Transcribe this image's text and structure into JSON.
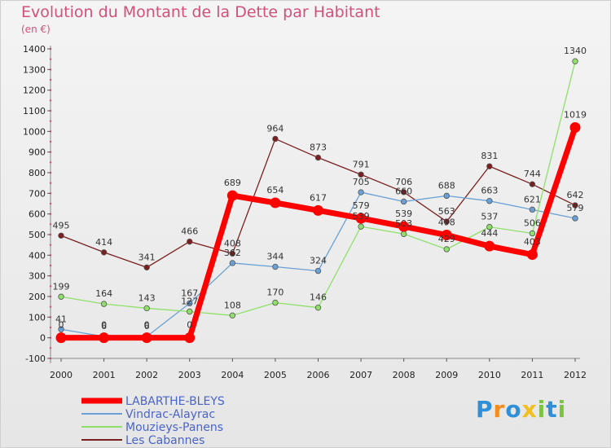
{
  "chart_data": {
    "type": "line",
    "title": "Evolution du Montant de la Dette par Habitant",
    "subtitle": "(en €)",
    "x": [
      "2000",
      "2001",
      "2002",
      "2003",
      "2004",
      "2005",
      "2006",
      "2007",
      "2008",
      "2009",
      "2010",
      "2011",
      "2012"
    ],
    "ylim": [
      -100,
      1400
    ],
    "yticks": [
      -100,
      0,
      100,
      200,
      300,
      400,
      500,
      600,
      700,
      800,
      900,
      1000,
      1100,
      1200,
      1300,
      1400
    ],
    "grid": false,
    "legend_position": "bottom-left",
    "series": [
      {
        "name": "LABARTHE-BLEYS",
        "color": "#ff0000",
        "width": 7,
        "marker_r": 6.5,
        "values": [
          0,
          0,
          0,
          0,
          689,
          654,
          617,
          579,
          539,
          498,
          444,
          403,
          1019
        ]
      },
      {
        "name": "Vindrac-Alayrac",
        "color": "#6aa0d6",
        "width": 1.3,
        "marker_r": 3.3,
        "values": [
          41,
          6,
          6,
          167,
          362,
          344,
          324,
          705,
          660,
          688,
          663,
          621,
          579
        ]
      },
      {
        "name": "Mouzieys-Panens",
        "color": "#8fe06a",
        "width": 1.3,
        "marker_r": 3.3,
        "values": [
          199,
          164,
          143,
          127,
          108,
          170,
          146,
          539,
          503,
          429,
          537,
          506,
          1340
        ]
      },
      {
        "name": "Les Cabannes",
        "color": "#7a1f1f",
        "width": 1.3,
        "marker_r": 3.3,
        "values": [
          495,
          414,
          341,
          466,
          408,
          964,
          873,
          791,
          706,
          563,
          831,
          744,
          642
        ]
      }
    ]
  },
  "logo": {
    "letters": [
      "P",
      "r",
      "o",
      "x",
      "i",
      "t",
      "i"
    ],
    "colors": [
      "#2f8fd8",
      "#f28c1e",
      "#2f8fd8",
      "#f2c01e",
      "#7cc243",
      "#2f8fd8",
      "#7cc243"
    ]
  }
}
